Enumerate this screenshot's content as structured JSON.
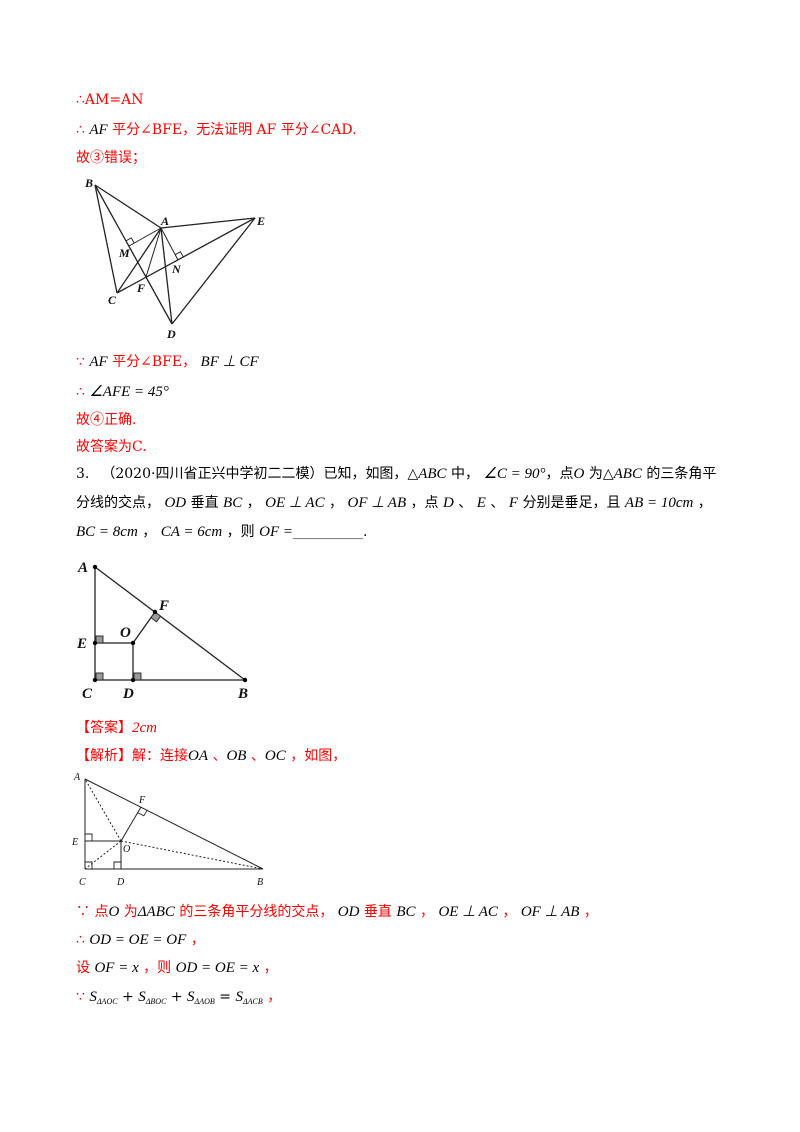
{
  "colors": {
    "solution_text": "#ff0000",
    "question_text": "#000000",
    "background": "#ffffff",
    "right_angle_fill": "#9a9a9a"
  },
  "lines": [
    [
      "∴AM=AN"
    ],
    [
      "∴ ",
      "AF",
      " 平分∠BFE，无法证明 AF 平分∠CAD."
    ],
    [
      "故③错误；"
    ],
    [
      "∵ ",
      "AF",
      " 平分∠BFE， ",
      "BF ⊥ CF"
    ],
    [
      "∴ ",
      "∠AFE = 45°"
    ],
    [
      "故④正确."
    ],
    [
      "故答案为C."
    ],
    [
      "3.",
      "（2020·四川省正兴中学初二二模）已知，如图，",
      "△",
      "ABC",
      " 中， ",
      "∠C = 90°",
      "，点",
      "O",
      " 为",
      "△",
      "ABC",
      " 的三条角平"
    ],
    [
      "分线的交点， ",
      "OD",
      " 垂直 ",
      "BC",
      " ， ",
      "OE ⊥ AC",
      " ， ",
      "OF ⊥ AB",
      " ，点 ",
      "D",
      " 、 ",
      "E",
      " 、 ",
      "F",
      " 分别是垂足，且 ",
      "AB = 10cm",
      " ，"
    ],
    [
      "BC = 8cm",
      " ， ",
      "CA = 6cm",
      " ，则 ",
      "OF =",
      "__________",
      "."
    ],
    [
      "【答案】",
      "2cm"
    ],
    [
      "【解析】解：连接",
      "OA",
      " 、",
      "OB",
      " 、",
      "OC",
      " ，如图，"
    ],
    [
      "∵ 点",
      "O",
      " 为",
      "ΔABC",
      " 的三条角平分线的交点， ",
      "OD",
      " 垂直 ",
      "BC",
      " ， ",
      "OE ⊥ AC",
      " ， ",
      "OF ⊥ AB",
      " ，"
    ],
    [
      "∴ ",
      "OD = OE = OF",
      " ，"
    ],
    [
      "设 ",
      "OF = x",
      " ，则 ",
      "OD = OE = x",
      " ，"
    ],
    [
      "∵ ",
      "S",
      "ΔAOC",
      " + ",
      "S",
      "ΔBOC",
      " + ",
      "S",
      "ΔAOB",
      " = ",
      "S",
      "ΔACB",
      " ，"
    ]
  ],
  "figures": [
    {
      "labels": [
        "B",
        "A",
        "E",
        "M",
        "N",
        "C",
        "F",
        "D"
      ]
    },
    {
      "labels": [
        "A",
        "F",
        "O",
        "E",
        "C",
        "D",
        "B"
      ]
    },
    {
      "labels": [
        "A",
        "F",
        "E",
        "O",
        "C",
        "D",
        "B"
      ]
    }
  ]
}
